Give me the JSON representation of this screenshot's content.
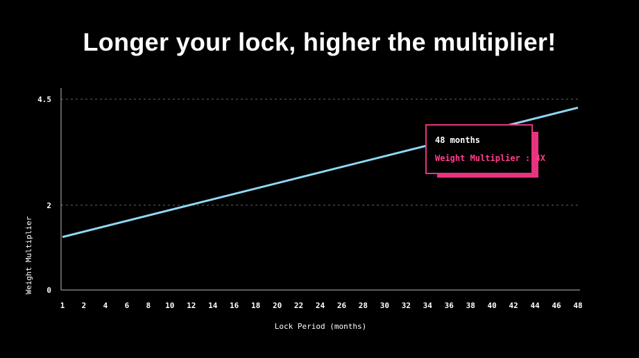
{
  "title": "Longer your lock, higher the multiplier!",
  "colors": {
    "background": "#000000",
    "line": "#8fd8f4",
    "accent": "#e8337f",
    "accent_text": "#ff3f8e",
    "grid": "#666666"
  },
  "tooltip": {
    "period": "48 months",
    "multiplier": "Weight Multiplier : 4X"
  },
  "chart_data": {
    "type": "line",
    "title": "Longer your lock, higher the multiplier!",
    "xlabel": "Lock Period (months)",
    "ylabel": "Weight Multiplier",
    "x_ticks": [
      "1",
      "2",
      "4",
      "6",
      "8",
      "10",
      "12",
      "14",
      "16",
      "18",
      "20",
      "22",
      "24",
      "26",
      "28",
      "30",
      "32",
      "34",
      "36",
      "38",
      "40",
      "42",
      "44",
      "46",
      "48"
    ],
    "y_ticks": [
      "0",
      "2",
      "4.5"
    ],
    "y_tick_values": [
      0,
      2,
      4.5
    ],
    "ylim": [
      0,
      4.5
    ],
    "grid": "horizontal dashed",
    "series": [
      {
        "x": [
          1,
          48
        ],
        "y": [
          1.25,
          4.3
        ]
      }
    ]
  }
}
